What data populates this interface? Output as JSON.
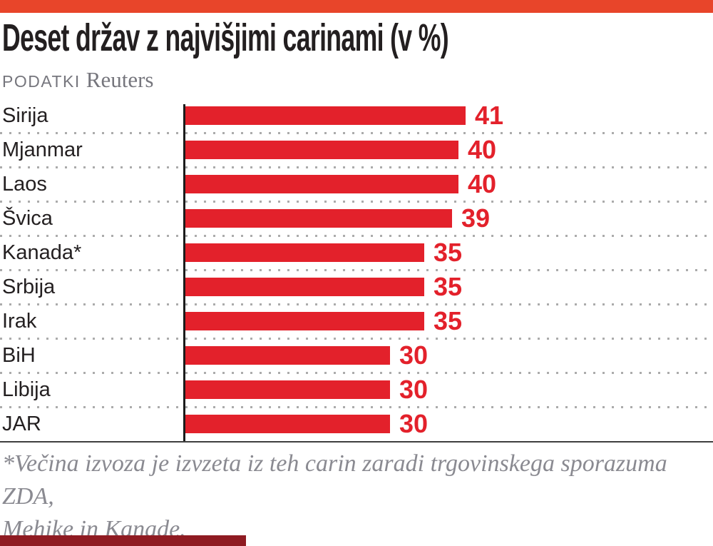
{
  "page": {
    "title": "Deset držav z najvišjimi carinami (v %)",
    "source_label": "PODATKI",
    "source_name": "Reuters",
    "footnote_line1": "*Večina izvoza je izvzeta iz teh carin zaradi trgovinskega sporazuma ZDA,",
    "footnote_line2": "Mehike in Kanade."
  },
  "colors": {
    "accent_orange": "#E8452A",
    "bar_red": "#E3212B",
    "value_label_red": "#E3212B",
    "text_dark": "#231F20",
    "source_gray": "#76767D",
    "footnote_gray": "#8A8A91",
    "dot_separator_gray": "#ABABAB",
    "axis_black": "#1C1C1C",
    "baseline_dark_gray": "#3F3F3F",
    "bottom_strip_dark_red": "#8F1B22"
  },
  "chart_data": {
    "type": "bar",
    "orientation": "horizontal",
    "title": "Deset držav z najvišjimi carinami (v %)",
    "source": "Reuters",
    "categories": [
      "Sirija",
      "Mjanmar",
      "Laos",
      "Švica",
      "Kanada*",
      "Srbija",
      "Irak",
      "BiH",
      "Libija",
      "JAR"
    ],
    "values": [
      41,
      40,
      40,
      39,
      35,
      35,
      35,
      30,
      30,
      30
    ],
    "unit": "percent",
    "xlim": [
      0,
      41
    ],
    "grid": "dotted horizontal row separators, solid bottom baseline, solid black zero axis",
    "legend": "none",
    "value_labels": "red bold numerals at end of each bar",
    "footnote": "*Večina izvoza je izvzeta iz teh carin zaradi trgovinskega sporazuma ZDA, Mehike in Kanade."
  }
}
